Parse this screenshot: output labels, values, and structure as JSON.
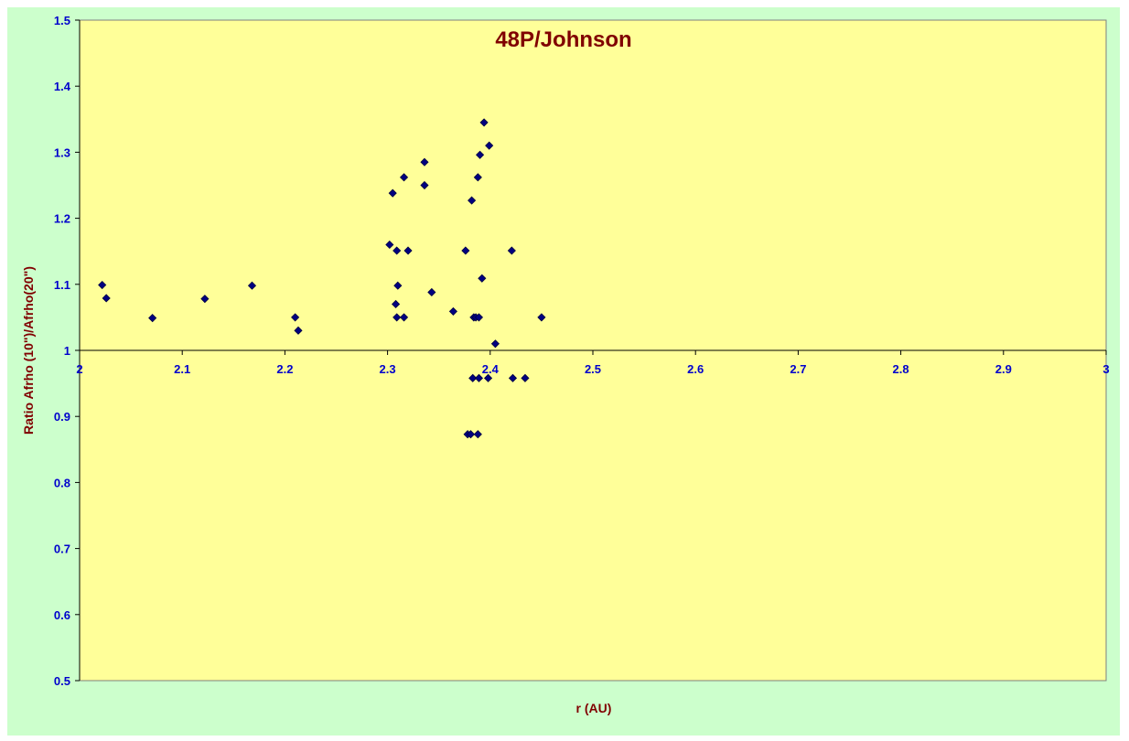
{
  "chart_data": {
    "type": "scatter",
    "title": "48P/Johnson",
    "xlabel": "r (AU)",
    "ylabel": "Ratio Afrho (10\")/Afrho(20\")",
    "xlim": [
      2,
      3
    ],
    "ylim": [
      0.5,
      1.5
    ],
    "x_ticks": [
      "2",
      "2.1",
      "2.2",
      "2.3",
      "2.4",
      "2.5",
      "2.6",
      "2.7",
      "2.8",
      "2.9",
      "3"
    ],
    "y_ticks": [
      "0.5",
      "0.6",
      "0.7",
      "0.8",
      "0.9",
      "1",
      "1.1",
      "1.2",
      "1.3",
      "1.4",
      "1.5"
    ],
    "x_axis_crosses_at": 1,
    "legend": "none",
    "colors": {
      "plot_bg": "#ffff99",
      "chart_bg": "#ccffcc",
      "marker": "#000080",
      "title": "#800000",
      "tick": "#0000cc",
      "axis": "#000000"
    },
    "series": [
      {
        "points": [
          [
            2.022,
            1.099
          ],
          [
            2.026,
            1.079
          ],
          [
            2.071,
            1.049
          ],
          [
            2.122,
            1.078
          ],
          [
            2.168,
            1.098
          ],
          [
            2.21,
            1.05
          ],
          [
            2.213,
            1.03
          ],
          [
            2.302,
            1.16
          ],
          [
            2.305,
            1.238
          ],
          [
            2.308,
            1.07
          ],
          [
            2.309,
            1.05
          ],
          [
            2.309,
            1.151
          ],
          [
            2.31,
            1.098
          ],
          [
            2.316,
            1.262
          ],
          [
            2.316,
            1.05
          ],
          [
            2.32,
            1.151
          ],
          [
            2.336,
            1.285
          ],
          [
            2.336,
            1.25
          ],
          [
            2.343,
            1.088
          ],
          [
            2.364,
            1.059
          ],
          [
            2.376,
            1.151
          ],
          [
            2.378,
            0.873
          ],
          [
            2.381,
            0.873
          ],
          [
            2.382,
            1.227
          ],
          [
            2.383,
            0.958
          ],
          [
            2.384,
            1.05
          ],
          [
            2.386,
            1.05
          ],
          [
            2.388,
            1.262
          ],
          [
            2.388,
            0.873
          ],
          [
            2.389,
            0.958
          ],
          [
            2.389,
            1.05
          ],
          [
            2.39,
            1.296
          ],
          [
            2.392,
            1.109
          ],
          [
            2.394,
            1.345
          ],
          [
            2.398,
            0.958
          ],
          [
            2.399,
            1.31
          ],
          [
            2.405,
            1.01
          ],
          [
            2.421,
            1.151
          ],
          [
            2.422,
            0.958
          ],
          [
            2.434,
            0.958
          ],
          [
            2.45,
            1.05
          ]
        ]
      }
    ]
  }
}
